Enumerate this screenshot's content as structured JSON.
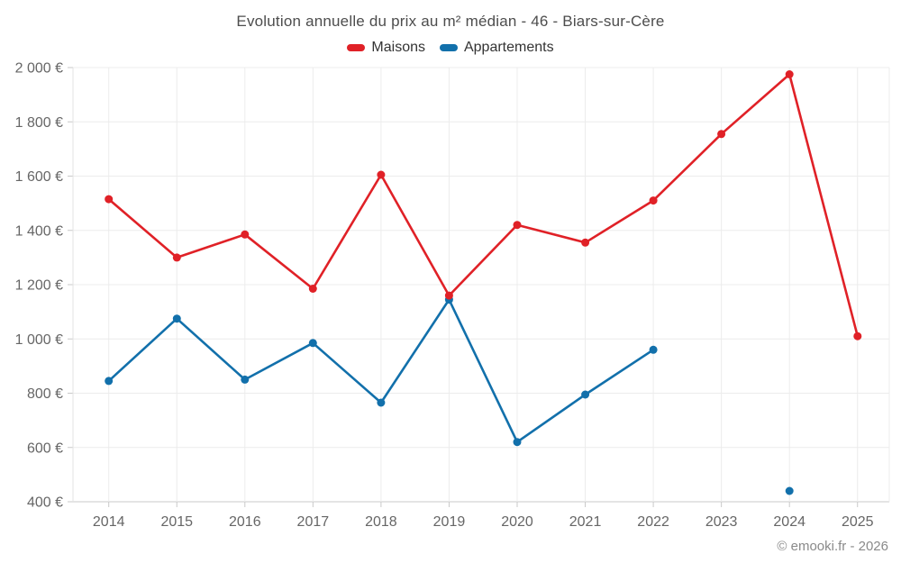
{
  "chart_data": {
    "type": "line",
    "title": "Evolution annuelle du prix au m² médian - 46 - Biars-sur-Cère",
    "x": [
      2014,
      2015,
      2016,
      2017,
      2018,
      2019,
      2020,
      2021,
      2022,
      2023,
      2024,
      2025
    ],
    "x_tick_labels": [
      "2014",
      "2015",
      "2016",
      "2017",
      "2018",
      "2019",
      "2020",
      "2021",
      "2022",
      "2023",
      "2024",
      "2025"
    ],
    "series": [
      {
        "name": "Maisons",
        "color": "#e02127",
        "values": [
          1515,
          1300,
          1385,
          1185,
          1605,
          1160,
          1420,
          1355,
          1510,
          1755,
          1975,
          1010
        ]
      },
      {
        "name": "Appartements",
        "color": "#1270ab",
        "values": [
          845,
          1075,
          850,
          985,
          765,
          1145,
          620,
          795,
          960,
          null,
          440,
          null
        ]
      }
    ],
    "ylim": [
      400,
      2000
    ],
    "y_ticks": [
      400,
      600,
      800,
      1000,
      1200,
      1400,
      1600,
      1800,
      2000
    ],
    "y_tick_labels": [
      "400 €",
      "600 €",
      "800 €",
      "1 000 €",
      "1 200 €",
      "1 400 €",
      "1 600 €",
      "1 800 €",
      "2 000 €"
    ],
    "grid": true,
    "legend_position": "top",
    "unit": "€"
  },
  "footer": {
    "text": "© emooki.fr - 2026"
  },
  "colors": {
    "maisons": "#e02127",
    "appartements": "#1270ab",
    "gridline": "#ececec",
    "axis_line": "#c9c9c9",
    "left_axis_line": "#e3e3e3",
    "tick_text": "#666666",
    "title_text": "#4d4d4d",
    "legend_text": "#333333",
    "footer_text": "#8a8a8a",
    "background": "#ffffff"
  }
}
